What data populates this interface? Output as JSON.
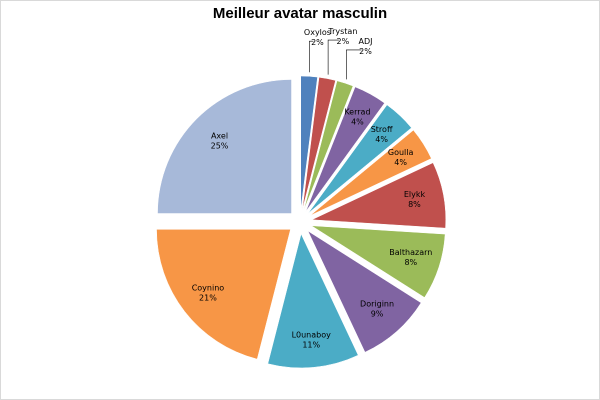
{
  "chart_data": {
    "type": "pie",
    "title": "Meilleur avatar masculin",
    "start_angle_deg": 0,
    "direction": "clockwise",
    "exploded": true,
    "slices": [
      {
        "name": "Oxylos",
        "value": 2,
        "label": "2%",
        "color": "#4f81bd"
      },
      {
        "name": "Trystan",
        "value": 2,
        "label": "2%",
        "color": "#c0504d"
      },
      {
        "name": "ADJ",
        "value": 2,
        "label": "2%",
        "color": "#9bbb59"
      },
      {
        "name": "Kerrad",
        "value": 4,
        "label": "4%",
        "color": "#8064a2"
      },
      {
        "name": "Stroff",
        "value": 4,
        "label": "4%",
        "color": "#4bacc6"
      },
      {
        "name": "Goulla",
        "value": 4,
        "label": "4%",
        "color": "#f79646"
      },
      {
        "name": "Elykk",
        "value": 8,
        "label": "8%",
        "color": "#c0504d"
      },
      {
        "name": "Balthazarn",
        "value": 8,
        "label": "8%",
        "color": "#9bbb59"
      },
      {
        "name": "Doriginn",
        "value": 9,
        "label": "9%",
        "color": "#8064a2"
      },
      {
        "name": "L0unaboy",
        "value": 11,
        "label": "11%",
        "color": "#4bacc6"
      },
      {
        "name": "Coynino",
        "value": 21,
        "label": "21%",
        "color": "#f79646"
      },
      {
        "name": "Axel",
        "value": 25,
        "label": "25%",
        "color": "#a7b9d9"
      }
    ]
  }
}
